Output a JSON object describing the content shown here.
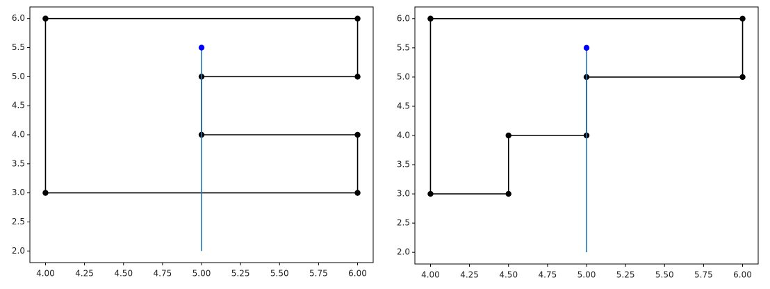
{
  "chart_data": [
    {
      "type": "line",
      "xlim": [
        3.9,
        6.1
      ],
      "ylim": [
        1.8,
        6.2
      ],
      "xticks": [
        {
          "value": 4,
          "label": "4.00"
        },
        {
          "value": 4.25,
          "label": "4.25"
        },
        {
          "value": 4.5,
          "label": "4.50"
        },
        {
          "value": 4.75,
          "label": "4.75"
        },
        {
          "value": 5,
          "label": "5.00"
        },
        {
          "value": 5.25,
          "label": "5.25"
        },
        {
          "value": 5.5,
          "label": "5.50"
        },
        {
          "value": 5.75,
          "label": "5.75"
        },
        {
          "value": 6,
          "label": "6.00"
        }
      ],
      "yticks": [
        {
          "value": 2,
          "label": "2.0"
        },
        {
          "value": 2.5,
          "label": "2.5"
        },
        {
          "value": 3,
          "label": "3.0"
        },
        {
          "value": 3.5,
          "label": "3.5"
        },
        {
          "value": 4,
          "label": "4.0"
        },
        {
          "value": 4.5,
          "label": "4.5"
        },
        {
          "value": 5,
          "label": "5.0"
        },
        {
          "value": 5.5,
          "label": "5.5"
        },
        {
          "value": 6,
          "label": "6.0"
        }
      ],
      "grid": false,
      "series": [
        {
          "color": "#000000",
          "marker": true,
          "line": true,
          "x": [
            4,
            6,
            6,
            5,
            5,
            6,
            6,
            4,
            4
          ],
          "values": [
            6,
            6,
            5,
            5,
            4,
            4,
            3,
            3,
            6
          ]
        },
        {
          "color": "#1f77b4",
          "marker": false,
          "line": true,
          "x": [
            5,
            5
          ],
          "values": [
            2,
            5.5
          ]
        },
        {
          "color": "#0000ff",
          "marker": true,
          "line": false,
          "x": [
            5
          ],
          "values": [
            5.5
          ]
        }
      ]
    },
    {
      "type": "line",
      "xlim": [
        3.9,
        6.1
      ],
      "ylim": [
        1.8,
        6.2
      ],
      "xticks": [
        {
          "value": 4,
          "label": "4.00"
        },
        {
          "value": 4.25,
          "label": "4.25"
        },
        {
          "value": 4.5,
          "label": "4.50"
        },
        {
          "value": 4.75,
          "label": "4.75"
        },
        {
          "value": 5,
          "label": "5.00"
        },
        {
          "value": 5.25,
          "label": "5.25"
        },
        {
          "value": 5.5,
          "label": "5.50"
        },
        {
          "value": 5.75,
          "label": "5.75"
        },
        {
          "value": 6,
          "label": "6.00"
        }
      ],
      "yticks": [
        {
          "value": 2,
          "label": "2.0"
        },
        {
          "value": 2.5,
          "label": "2.5"
        },
        {
          "value": 3,
          "label": "3.0"
        },
        {
          "value": 3.5,
          "label": "3.5"
        },
        {
          "value": 4,
          "label": "4.0"
        },
        {
          "value": 4.5,
          "label": "4.5"
        },
        {
          "value": 5,
          "label": "5.0"
        },
        {
          "value": 5.5,
          "label": "5.5"
        },
        {
          "value": 6,
          "label": "6.0"
        }
      ],
      "grid": false,
      "series": [
        {
          "color": "#000000",
          "marker": true,
          "line": true,
          "x": [
            4,
            6,
            6,
            5,
            5,
            4.5,
            4.5,
            4,
            4
          ],
          "values": [
            6,
            6,
            5,
            5,
            4,
            4,
            3,
            3,
            6
          ]
        },
        {
          "color": "#1f77b4",
          "marker": false,
          "line": true,
          "x": [
            5,
            5
          ],
          "values": [
            2,
            5.5
          ]
        },
        {
          "color": "#0000ff",
          "marker": true,
          "line": false,
          "x": [
            5
          ],
          "values": [
            5.5
          ]
        }
      ]
    }
  ]
}
